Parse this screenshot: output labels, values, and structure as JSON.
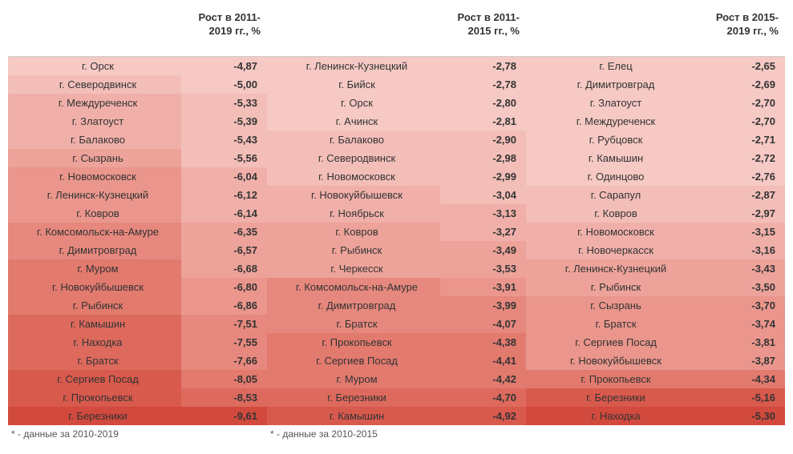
{
  "colors": {
    "shade0": "#f6c9c4",
    "shade1": "#f3beb8",
    "shade2": "#f0b0a9",
    "shade3": "#eda39a",
    "shade4": "#ea968c",
    "shade5": "#e6887d",
    "shade6": "#e27a6e",
    "shade7": "#dd6a5d",
    "shade8": "#d85a4d",
    "shade9": "#d24a3d"
  },
  "blocks": [
    {
      "header": "Рост в 2011-2019 гг., %",
      "footnote": "* - данные за 2010-2019",
      "rows": [
        {
          "city": "г. Орск",
          "value": "-4,87",
          "cityShade": 0,
          "valShade": 0
        },
        {
          "city": "г. Северодвинск",
          "value": "-5,00",
          "cityShade": 1,
          "valShade": 0
        },
        {
          "city": "г. Междуреченск",
          "value": "-5,33",
          "cityShade": 2,
          "valShade": 1
        },
        {
          "city": "г. Златоуст",
          "value": "-5,39",
          "cityShade": 2,
          "valShade": 1
        },
        {
          "city": "г. Балаково",
          "value": "-5,43",
          "cityShade": 2,
          "valShade": 1
        },
        {
          "city": "г. Сызрань",
          "value": "-5,56",
          "cityShade": 3,
          "valShade": 1
        },
        {
          "city": "г. Новомосковск",
          "value": "-6,04",
          "cityShade": 4,
          "valShade": 2
        },
        {
          "city": "г. Ленинск-Кузнецкий",
          "value": "-6,12",
          "cityShade": 4,
          "valShade": 2
        },
        {
          "city": "г. Ковров",
          "value": "-6,14",
          "cityShade": 4,
          "valShade": 2
        },
        {
          "city": "г. Комсомольск-на-Амуре",
          "value": "-6,35",
          "cityShade": 5,
          "valShade": 3
        },
        {
          "city": "г. Димитровград",
          "value": "-6,57",
          "cityShade": 5,
          "valShade": 3
        },
        {
          "city": "г. Муром",
          "value": "-6,68",
          "cityShade": 6,
          "valShade": 3
        },
        {
          "city": "г. Новокуйбышевск",
          "value": "-6,80",
          "cityShade": 6,
          "valShade": 4
        },
        {
          "city": "г. Рыбинск",
          "value": "-6,86",
          "cityShade": 6,
          "valShade": 4
        },
        {
          "city": "г. Камышин",
          "value": "-7,51",
          "cityShade": 7,
          "valShade": 5
        },
        {
          "city": "г. Находка",
          "value": "-7,55",
          "cityShade": 7,
          "valShade": 5
        },
        {
          "city": "г. Братск",
          "value": "-7,66",
          "cityShade": 7,
          "valShade": 5
        },
        {
          "city": "г. Сергиев Посад",
          "value": "-8,05",
          "cityShade": 8,
          "valShade": 6
        },
        {
          "city": "г. Прокопьевск",
          "value": "-8,53",
          "cityShade": 8,
          "valShade": 7
        },
        {
          "city": "г. Березники",
          "value": "-9,61",
          "cityShade": 9,
          "valShade": 9
        }
      ]
    },
    {
      "header": "Рост в 2011-2015 гг., %",
      "footnote": "* - данные за 2010-2015",
      "rows": [
        {
          "city": "г. Ленинск-Кузнецкий",
          "value": "-2,78",
          "cityShade": 0,
          "valShade": 0
        },
        {
          "city": "г. Бийск",
          "value": "-2,78",
          "cityShade": 0,
          "valShade": 0
        },
        {
          "city": "г. Орск",
          "value": "-2,80",
          "cityShade": 0,
          "valShade": 0
        },
        {
          "city": "г. Ачинск",
          "value": "-2,81",
          "cityShade": 0,
          "valShade": 0
        },
        {
          "city": "г. Балаково",
          "value": "-2,90",
          "cityShade": 1,
          "valShade": 1
        },
        {
          "city": "г. Северодвинск",
          "value": "-2,98",
          "cityShade": 1,
          "valShade": 1
        },
        {
          "city": "г. Новомосковск",
          "value": "-2,99",
          "cityShade": 1,
          "valShade": 1
        },
        {
          "city": "г. Новокуйбышевск",
          "value": "-3,04",
          "cityShade": 2,
          "valShade": 1
        },
        {
          "city": "г. Ноябрьск",
          "value": "-3,13",
          "cityShade": 2,
          "valShade": 2
        },
        {
          "city": "г. Ковров",
          "value": "-3,27",
          "cityShade": 3,
          "valShade": 2
        },
        {
          "city": "г. Рыбинск",
          "value": "-3,49",
          "cityShade": 3,
          "valShade": 3
        },
        {
          "city": "г. Черкесск",
          "value": "-3,53",
          "cityShade": 3,
          "valShade": 3
        },
        {
          "city": "г. Комсомольск-на-Амуре",
          "value": "-3,91",
          "cityShade": 5,
          "valShade": 4
        },
        {
          "city": "г. Димитровград",
          "value": "-3,99",
          "cityShade": 5,
          "valShade": 5
        },
        {
          "city": "г. Братск",
          "value": "-4,07",
          "cityShade": 5,
          "valShade": 5
        },
        {
          "city": "г. Прокопьевск",
          "value": "-4,38",
          "cityShade": 6,
          "valShade": 6
        },
        {
          "city": "г. Сергиев Посад",
          "value": "-4,41",
          "cityShade": 6,
          "valShade": 6
        },
        {
          "city": "г. Муром",
          "value": "-4,42",
          "cityShade": 6,
          "valShade": 6
        },
        {
          "city": "г. Березники",
          "value": "-4,70",
          "cityShade": 7,
          "valShade": 7
        },
        {
          "city": "г. Камышин",
          "value": "-4,92",
          "cityShade": 8,
          "valShade": 8
        }
      ]
    },
    {
      "header": "Рост в 2015-2019 гг., %",
      "footnote": "",
      "rows": [
        {
          "city": "г. Елец",
          "value": "-2,65",
          "cityShade": 0,
          "valShade": 0
        },
        {
          "city": "г. Димитровград",
          "value": "-2,69",
          "cityShade": 0,
          "valShade": 0
        },
        {
          "city": "г. Златоуст",
          "value": "-2,70",
          "cityShade": 0,
          "valShade": 0
        },
        {
          "city": "г. Междуреченск",
          "value": "-2,70",
          "cityShade": 0,
          "valShade": 0
        },
        {
          "city": "г. Рубцовск",
          "value": "-2,71",
          "cityShade": 0,
          "valShade": 0
        },
        {
          "city": "г. Камышин",
          "value": "-2,72",
          "cityShade": 0,
          "valShade": 0
        },
        {
          "city": "г. Одинцово",
          "value": "-2,76",
          "cityShade": 0,
          "valShade": 0
        },
        {
          "city": "г. Сарапул",
          "value": "-2,87",
          "cityShade": 1,
          "valShade": 1
        },
        {
          "city": "г. Ковров",
          "value": "-2,97",
          "cityShade": 1,
          "valShade": 1
        },
        {
          "city": "г. Новомосковск",
          "value": "-3,15",
          "cityShade": 2,
          "valShade": 2
        },
        {
          "city": "г. Новочеркасск",
          "value": "-3,16",
          "cityShade": 2,
          "valShade": 2
        },
        {
          "city": "г. Ленинск-Кузнецкий",
          "value": "-3,43",
          "cityShade": 3,
          "valShade": 3
        },
        {
          "city": "г. Рыбинск",
          "value": "-3,50",
          "cityShade": 3,
          "valShade": 3
        },
        {
          "city": "г. Сызрань",
          "value": "-3,70",
          "cityShade": 4,
          "valShade": 4
        },
        {
          "city": "г. Братск",
          "value": "-3,74",
          "cityShade": 4,
          "valShade": 4
        },
        {
          "city": "г. Сергиев Посад",
          "value": "-3,81",
          "cityShade": 4,
          "valShade": 4
        },
        {
          "city": "г. Новокуйбышевск",
          "value": "-3,87",
          "cityShade": 4,
          "valShade": 4
        },
        {
          "city": "г. Прокопьевск",
          "value": "-4,34",
          "cityShade": 6,
          "valShade": 6
        },
        {
          "city": "г. Березники",
          "value": "-5,16",
          "cityShade": 8,
          "valShade": 8
        },
        {
          "city": "г. Находка",
          "value": "-5,30",
          "cityShade": 9,
          "valShade": 9
        }
      ]
    }
  ]
}
